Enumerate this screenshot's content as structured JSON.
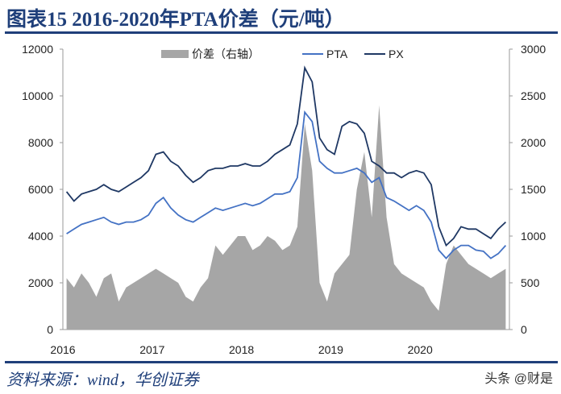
{
  "title": "图表15  2016-2020年PTA价差（元/吨）",
  "source": "资料来源：wind，华创证券",
  "watermark": "头条 @财是",
  "chart_data": {
    "type": "line",
    "title": "",
    "xlabel": "",
    "ylabel": "",
    "x_ticks": [
      "2016",
      "2017",
      "2018",
      "2019",
      "2020"
    ],
    "xlim": [
      "2016-01",
      "2021-01"
    ],
    "ylim_left": [
      0,
      12000
    ],
    "yticks_left": [
      0,
      2000,
      4000,
      6000,
      8000,
      10000,
      12000
    ],
    "ylim_right": [
      0,
      3000
    ],
    "yticks_right": [
      0,
      500,
      1000,
      1500,
      2000,
      2500,
      3000
    ],
    "legend_position": "top-center",
    "colors": {
      "spread": "#a6a6a6",
      "PTA": "#4472c4",
      "PX": "#1f3864"
    },
    "x": [
      "2016-01",
      "2016-02",
      "2016-03",
      "2016-04",
      "2016-05",
      "2016-06",
      "2016-07",
      "2016-08",
      "2016-09",
      "2016-10",
      "2016-11",
      "2016-12",
      "2017-01",
      "2017-02",
      "2017-03",
      "2017-04",
      "2017-05",
      "2017-06",
      "2017-07",
      "2017-08",
      "2017-09",
      "2017-10",
      "2017-11",
      "2017-12",
      "2018-01",
      "2018-02",
      "2018-03",
      "2018-04",
      "2018-05",
      "2018-06",
      "2018-07",
      "2018-08",
      "2018-09",
      "2018-10",
      "2018-11",
      "2018-12",
      "2019-01",
      "2019-02",
      "2019-03",
      "2019-04",
      "2019-05",
      "2019-06",
      "2019-07",
      "2019-08",
      "2019-09",
      "2019-10",
      "2019-11",
      "2019-12",
      "2020-01",
      "2020-02",
      "2020-03",
      "2020-04",
      "2020-05",
      "2020-06",
      "2020-07",
      "2020-08",
      "2020-09",
      "2020-10",
      "2020-11",
      "2020-12"
    ],
    "series": [
      {
        "name": "价差（右轴）",
        "type": "area",
        "axis": "right",
        "values": [
          550,
          450,
          600,
          500,
          350,
          550,
          600,
          300,
          450,
          500,
          550,
          600,
          650,
          600,
          550,
          500,
          350,
          300,
          450,
          550,
          900,
          800,
          900,
          1000,
          1000,
          850,
          900,
          1000,
          950,
          850,
          900,
          1100,
          2200,
          1700,
          500,
          300,
          600,
          700,
          800,
          1500,
          1900,
          1200,
          2400,
          1200,
          700,
          600,
          550,
          500,
          450,
          300,
          200,
          700,
          900,
          800,
          700,
          650,
          600,
          550,
          600,
          650
        ]
      },
      {
        "name": "PTA",
        "type": "line",
        "axis": "left",
        "values": [
          4100,
          4300,
          4500,
          4600,
          4700,
          4800,
          4600,
          4500,
          4600,
          4600,
          4700,
          4900,
          5400,
          5650,
          5200,
          4900,
          4700,
          4600,
          4800,
          5000,
          5200,
          5100,
          5200,
          5300,
          5400,
          5300,
          5400,
          5600,
          5800,
          5800,
          5900,
          6500,
          9300,
          8900,
          7200,
          6900,
          6700,
          6700,
          6800,
          6900,
          6700,
          6300,
          6500,
          5650,
          5500,
          5300,
          5100,
          5300,
          5100,
          4600,
          3400,
          3050,
          3400,
          3600,
          3600,
          3400,
          3350,
          3050,
          3250,
          3600
        ]
      },
      {
        "name": "PX",
        "type": "line",
        "axis": "left",
        "values": [
          5900,
          5500,
          5800,
          5900,
          6000,
          6200,
          6000,
          5900,
          6100,
          6300,
          6500,
          6800,
          7500,
          7600,
          7200,
          7000,
          6600,
          6300,
          6500,
          6800,
          6900,
          6900,
          7000,
          7000,
          7100,
          7000,
          7000,
          7200,
          7500,
          7700,
          7900,
          8800,
          11200,
          10600,
          8200,
          7700,
          7500,
          8700,
          8900,
          8800,
          8400,
          7200,
          7000,
          6700,
          6700,
          6500,
          6700,
          6800,
          6700,
          6200,
          4400,
          3600,
          3900,
          4400,
          4300,
          4300,
          4100,
          3900,
          4300,
          4600
        ]
      }
    ]
  }
}
